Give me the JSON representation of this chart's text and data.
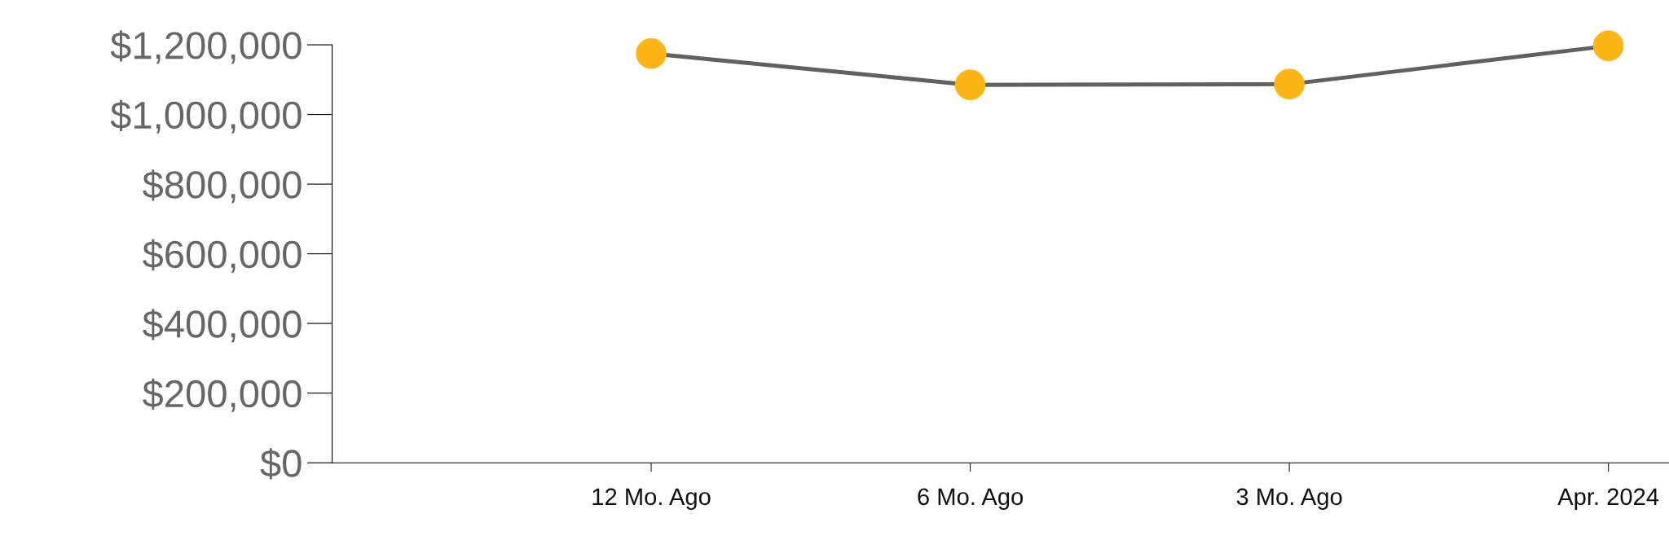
{
  "chart_data": {
    "type": "line",
    "categories": [
      null,
      "12 Mo. Ago",
      "6 Mo. Ago",
      "3 Mo. Ago",
      "Apr. 2024"
    ],
    "series": [
      {
        "color": "#606060",
        "colors": [
          null,
          "#fdb515",
          "#fdb515",
          "#fdb515",
          "#fdb515"
        ],
        "values": [
          null,
          1175000,
          1085000,
          1087000,
          1197000
        ]
      }
    ],
    "ylim": [
      0,
      1200000
    ],
    "yticks": [
      {
        "value": 0,
        "label": "$0"
      },
      {
        "value": 200000,
        "label": "$200,000"
      },
      {
        "value": 400000,
        "label": "$400,000"
      },
      {
        "value": 600000,
        "label": "$600,000"
      },
      {
        "value": 800000,
        "label": "$800,000"
      },
      {
        "value": 1000000,
        "label": "$1,000,000"
      },
      {
        "value": 1200000,
        "label": "$1,200,000"
      }
    ],
    "marker": "circle",
    "line_style": "solid",
    "grid": false,
    "legend": false
  }
}
